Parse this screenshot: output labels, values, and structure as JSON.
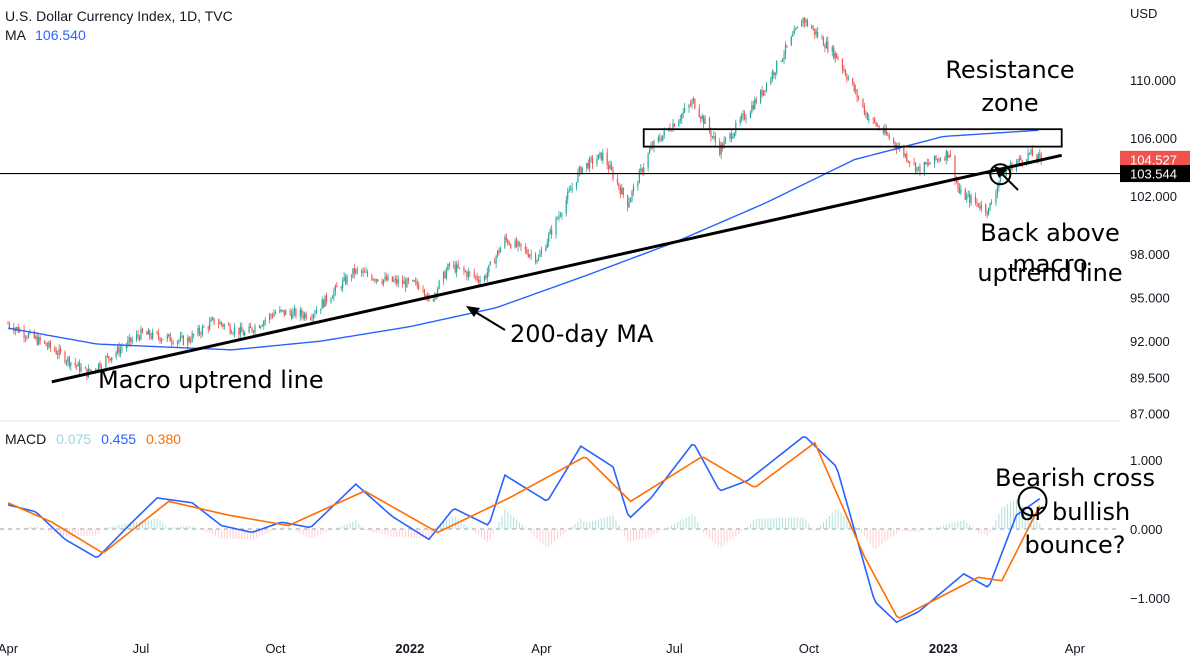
{
  "header": {
    "title": "U.S. Dollar Currency Index, 1D, TVC",
    "ma_label": "MA",
    "ma_value": "106.540",
    "currency": "USD"
  },
  "macd_legend": {
    "label": "MACD",
    "values": [
      "0.075",
      "0.455",
      "0.380"
    ]
  },
  "colors": {
    "up": "#26a69a",
    "down": "#ef5350",
    "ma": "#2962ff",
    "macd_line": "#2962ff",
    "signal_line": "#ff6d00",
    "hist_pos": "#b2dfdb",
    "hist_neg": "#ffcdd2",
    "last_price_bg": "#ef5350",
    "level_bg": "#000000"
  },
  "chart_data": [
    {
      "type": "candlestick",
      "series_name": "U.S. Dollar Currency Index",
      "y_axis": {
        "unit": "USD",
        "ticks": [
          "110.000",
          "106.000",
          "102.000",
          "98.000",
          "95.000",
          "92.000",
          "89.500",
          "87.000"
        ],
        "ylim": [
          86.5,
          115.5
        ]
      },
      "x_axis": {
        "ticks": [
          "Apr",
          "Jul",
          "Oct",
          "2022",
          "Apr",
          "Jul",
          "Oct",
          "2023",
          "Apr"
        ],
        "range": [
          "2021-04-01",
          "2023-04-10"
        ]
      },
      "price_path": [
        [
          "2021-04-01",
          93.2
        ],
        [
          "2021-05-01",
          91.5
        ],
        [
          "2021-05-25",
          89.8
        ],
        [
          "2021-07-01",
          92.5
        ],
        [
          "2021-08-01",
          92.0
        ],
        [
          "2021-08-20",
          93.4
        ],
        [
          "2021-09-10",
          92.5
        ],
        [
          "2021-10-01",
          94.0
        ],
        [
          "2021-10-25",
          93.8
        ],
        [
          "2021-11-24",
          96.8
        ],
        [
          "2021-12-15",
          96.2
        ],
        [
          "2022-01-10",
          95.8
        ],
        [
          "2022-01-14",
          94.6
        ],
        [
          "2022-01-28",
          97.2
        ],
        [
          "2022-02-20",
          96.2
        ],
        [
          "2022-03-07",
          99.0
        ],
        [
          "2022-03-30",
          97.7
        ],
        [
          "2022-04-28",
          103.9
        ],
        [
          "2022-05-13",
          104.8
        ],
        [
          "2022-05-30",
          101.5
        ],
        [
          "2022-06-15",
          105.3
        ],
        [
          "2022-07-14",
          108.5
        ],
        [
          "2022-08-01",
          105.2
        ],
        [
          "2022-08-29",
          109.0
        ],
        [
          "2022-09-27",
          114.2
        ],
        [
          "2022-10-21",
          111.5
        ],
        [
          "2022-11-10",
          107.5
        ],
        [
          "2022-11-30",
          105.5
        ],
        [
          "2022-12-15",
          103.8
        ],
        [
          "2023-01-05",
          105.0
        ],
        [
          "2023-01-12",
          102.2
        ],
        [
          "2023-02-01",
          101.0
        ],
        [
          "2023-02-10",
          103.6
        ],
        [
          "2023-03-01",
          104.9
        ],
        [
          "2023-03-09",
          104.5
        ]
      ],
      "moving_average": {
        "name": "MA",
        "period": 200,
        "path": [
          [
            "2021-04-01",
            92.9
          ],
          [
            "2021-06-01",
            91.8
          ],
          [
            "2021-09-01",
            91.4
          ],
          [
            "2021-11-01",
            92.0
          ],
          [
            "2022-01-01",
            93.0
          ],
          [
            "2022-03-01",
            94.3
          ],
          [
            "2022-05-01",
            96.5
          ],
          [
            "2022-07-01",
            98.8
          ],
          [
            "2022-09-01",
            101.5
          ],
          [
            "2022-11-01",
            104.5
          ],
          [
            "2023-01-01",
            106.1
          ],
          [
            "2023-03-09",
            106.54
          ]
        ]
      },
      "last_price": "104.527",
      "marked_level": "103.544",
      "uptrend_line": [
        [
          "2021-05-01",
          89.2
        ],
        [
          "2023-03-23",
          104.8
        ]
      ],
      "resistance_zone": {
        "from": "2022-06-10",
        "to": "2023-03-23",
        "low": 105.4,
        "high": 106.6
      },
      "annotations": {
        "resistance": [
          "Resistance",
          "zone"
        ],
        "uptrend": "Macro uptrend line",
        "ma": "200-day MA",
        "back_above": [
          "Back above",
          "macro",
          "uptrend line"
        ]
      }
    },
    {
      "type": "line",
      "series_name": "MACD",
      "y_axis": {
        "ticks": [
          "1.000",
          "0.000",
          "−1.000"
        ],
        "ylim": [
          -1.55,
          1.55
        ]
      },
      "macd_path": [
        [
          "2021-04-01",
          0.35
        ],
        [
          "2021-04-20",
          0.25
        ],
        [
          "2021-05-10",
          -0.15
        ],
        [
          "2021-06-01",
          -0.42
        ],
        [
          "2021-06-25",
          0.1
        ],
        [
          "2021-07-12",
          0.45
        ],
        [
          "2021-08-05",
          0.38
        ],
        [
          "2021-08-25",
          0.05
        ],
        [
          "2021-09-15",
          -0.05
        ],
        [
          "2021-10-05",
          0.1
        ],
        [
          "2021-10-25",
          0.02
        ],
        [
          "2021-11-25",
          0.65
        ],
        [
          "2021-12-20",
          0.18
        ],
        [
          "2022-01-14",
          -0.15
        ],
        [
          "2022-01-31",
          0.3
        ],
        [
          "2022-02-24",
          0.05
        ],
        [
          "2022-03-07",
          0.78
        ],
        [
          "2022-04-05",
          0.4
        ],
        [
          "2022-04-28",
          1.2
        ],
        [
          "2022-05-20",
          0.9
        ],
        [
          "2022-05-31",
          0.15
        ],
        [
          "2022-06-15",
          0.45
        ],
        [
          "2022-07-14",
          1.25
        ],
        [
          "2022-08-01",
          0.55
        ],
        [
          "2022-08-20",
          0.7
        ],
        [
          "2022-09-28",
          1.35
        ],
        [
          "2022-10-20",
          0.9
        ],
        [
          "2022-11-15",
          -1.05
        ],
        [
          "2022-11-30",
          -1.35
        ],
        [
          "2022-12-15",
          -1.2
        ],
        [
          "2023-01-15",
          -0.65
        ],
        [
          "2023-02-01",
          -0.85
        ],
        [
          "2023-02-20",
          0.2
        ],
        [
          "2023-03-09",
          0.455
        ]
      ],
      "signal_path": [
        [
          "2021-04-01",
          0.38
        ],
        [
          "2021-05-01",
          0.1
        ],
        [
          "2021-06-05",
          -0.35
        ],
        [
          "2021-07-20",
          0.4
        ],
        [
          "2021-08-30",
          0.2
        ],
        [
          "2021-10-10",
          0.05
        ],
        [
          "2021-12-01",
          0.55
        ],
        [
          "2022-01-20",
          -0.05
        ],
        [
          "2022-03-10",
          0.45
        ],
        [
          "2022-05-01",
          1.05
        ],
        [
          "2022-06-01",
          0.4
        ],
        [
          "2022-07-20",
          1.05
        ],
        [
          "2022-08-25",
          0.6
        ],
        [
          "2022-10-05",
          1.25
        ],
        [
          "2022-11-08",
          -0.4
        ],
        [
          "2022-12-01",
          -1.3
        ],
        [
          "2023-01-25",
          -0.7
        ],
        [
          "2023-02-10",
          -0.75
        ],
        [
          "2023-03-09",
          0.38
        ]
      ],
      "histogram_latest": 0.075,
      "annotation": [
        "Bearish cross",
        "or bullish",
        "bounce?"
      ]
    }
  ]
}
